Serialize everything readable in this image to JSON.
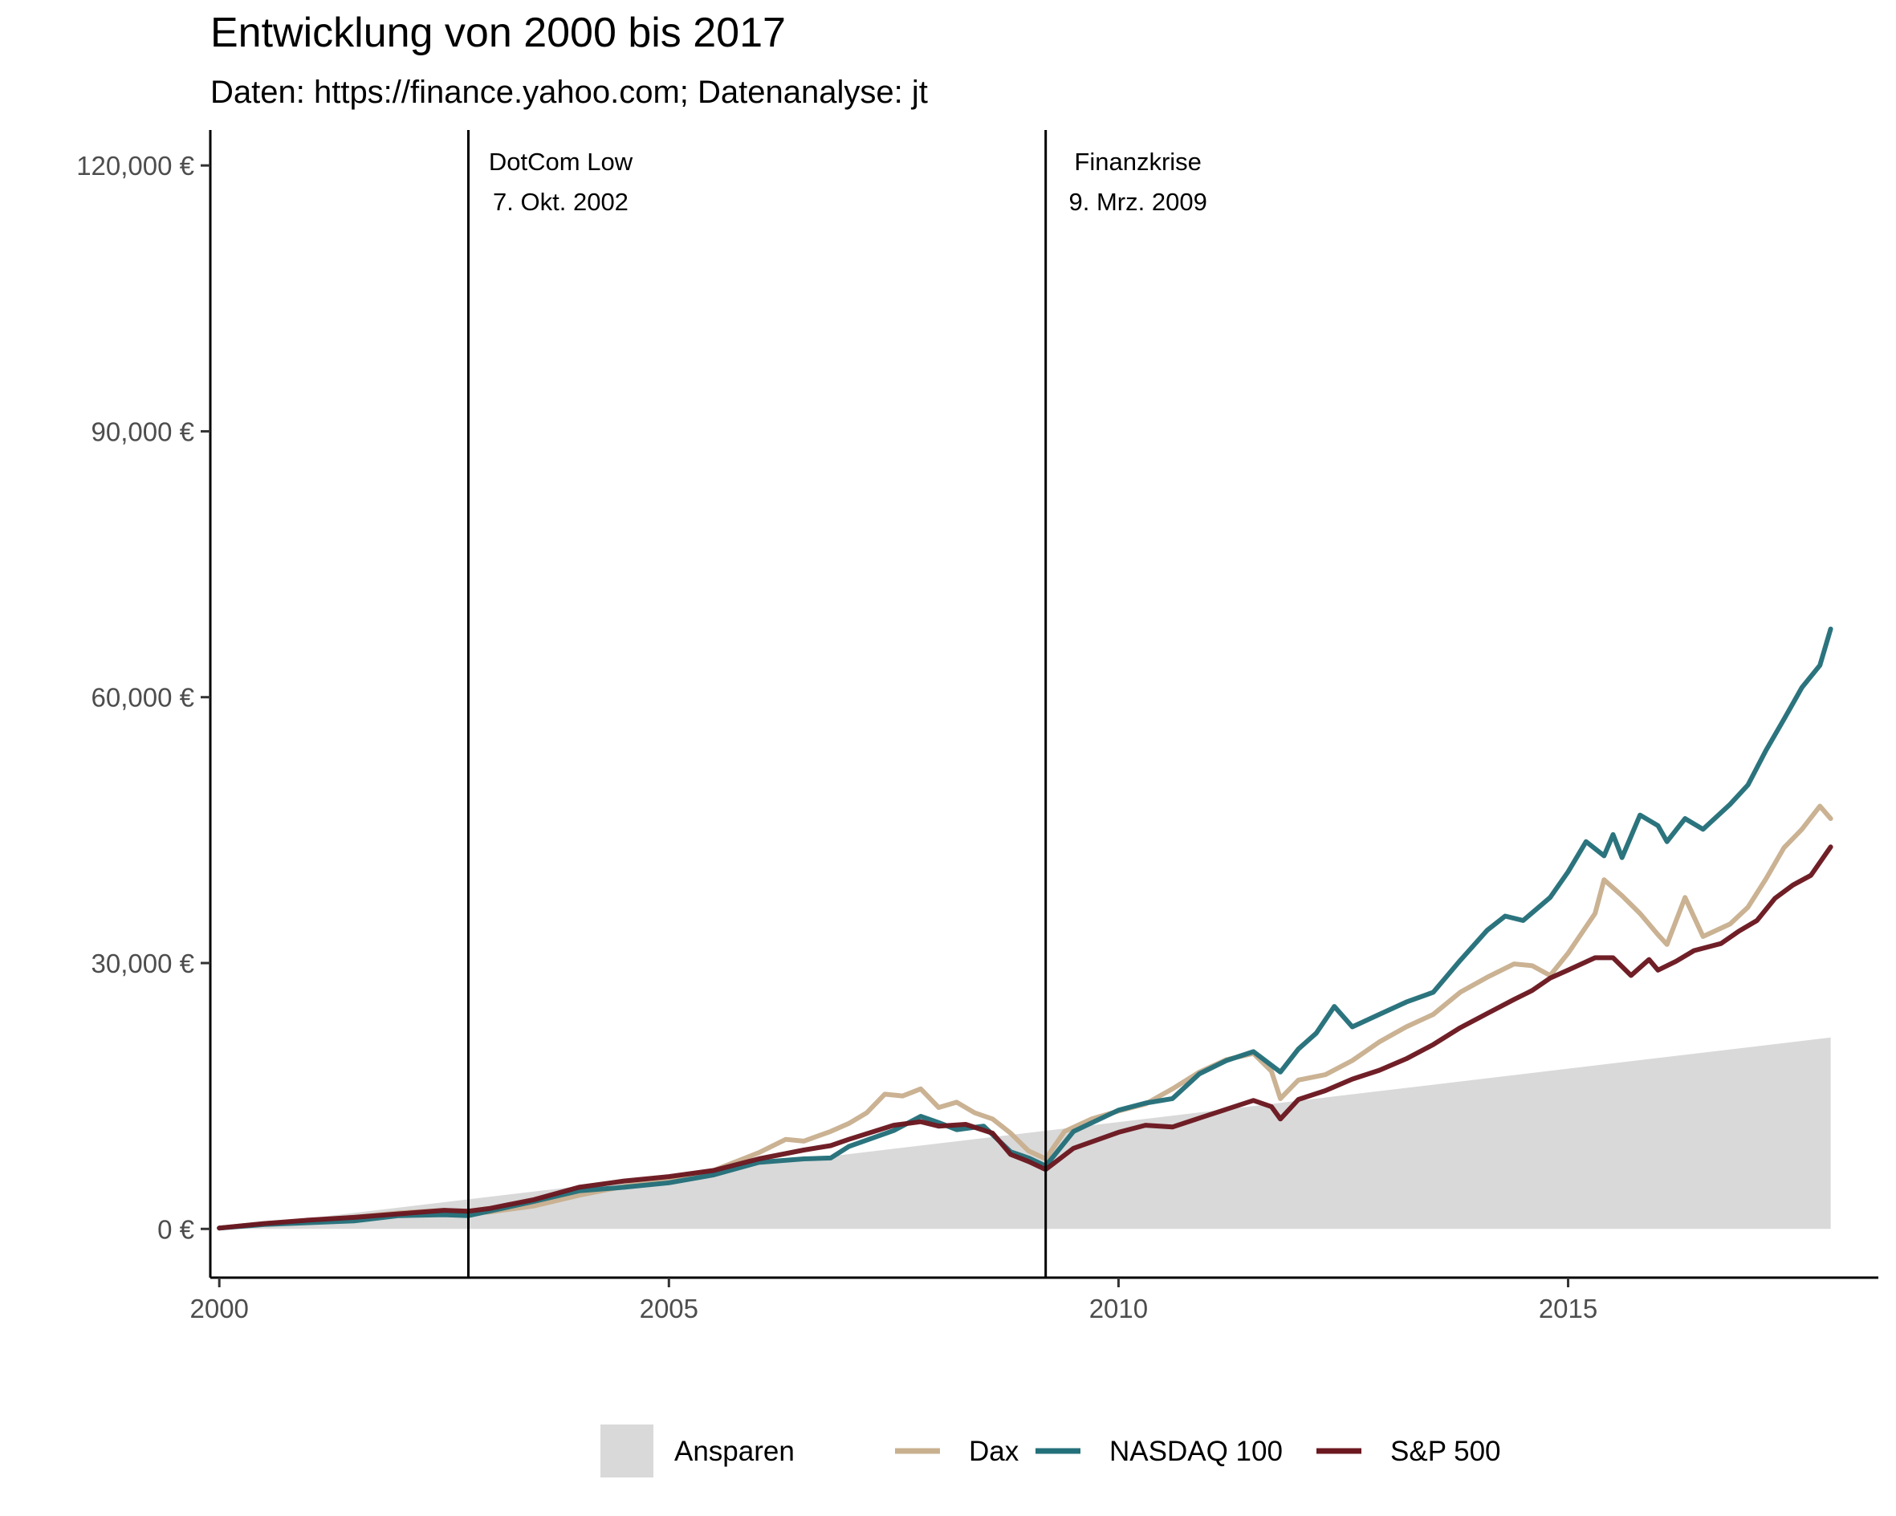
{
  "chart_data": {
    "type": "line",
    "title": "Entwicklung von 2000 bis 2017",
    "subtitle": "Daten: https://finance.yahoo.com; Datenanalyse: jt",
    "xlabel": "",
    "ylabel": "",
    "xlim": [
      1999.9,
      2018.45
    ],
    "ylim": [
      -5500,
      124000
    ],
    "x_ticks": [
      2000,
      2005,
      2010,
      2015
    ],
    "x_tick_labels": [
      "2000",
      "2005",
      "2010",
      "2015"
    ],
    "y_ticks": [
      0,
      30000,
      60000,
      90000,
      120000
    ],
    "y_tick_labels": [
      "0 €",
      "30,000 €",
      "60,000 €",
      "90,000 €",
      "120,000 €"
    ],
    "grid": false,
    "legend_position": "bottom",
    "annotations": [
      {
        "x": 2002.77,
        "line1": "DotCom Low",
        "line2": "7. Okt. 2002"
      },
      {
        "x": 2009.19,
        "line1": "Finanzkrise",
        "line2": "9. Mrz. 2009"
      }
    ],
    "area": {
      "name": "Ansparen",
      "color": "#d9d9d9",
      "x": [
        2000.0,
        2017.92
      ],
      "y": [
        0,
        21600
      ]
    },
    "series": [
      {
        "name": "Dax",
        "color": "#c8b08f",
        "points": [
          [
            2000.0,
            100
          ],
          [
            2000.5,
            600
          ],
          [
            2001.0,
            900
          ],
          [
            2001.5,
            1300
          ],
          [
            2002.0,
            1800
          ],
          [
            2002.5,
            2100
          ],
          [
            2002.77,
            1800
          ],
          [
            2003.0,
            1900
          ],
          [
            2003.5,
            2600
          ],
          [
            2004.0,
            3800
          ],
          [
            2004.5,
            4800
          ],
          [
            2005.0,
            5700
          ],
          [
            2005.5,
            6600
          ],
          [
            2006.0,
            8600
          ],
          [
            2006.3,
            10100
          ],
          [
            2006.5,
            9900
          ],
          [
            2006.8,
            11000
          ],
          [
            2007.0,
            11900
          ],
          [
            2007.2,
            13100
          ],
          [
            2007.4,
            15200
          ],
          [
            2007.6,
            15000
          ],
          [
            2007.8,
            15800
          ],
          [
            2008.0,
            13700
          ],
          [
            2008.2,
            14300
          ],
          [
            2008.4,
            13100
          ],
          [
            2008.6,
            12400
          ],
          [
            2008.8,
            10800
          ],
          [
            2009.0,
            8800
          ],
          [
            2009.19,
            7900
          ],
          [
            2009.4,
            11000
          ],
          [
            2009.7,
            12400
          ],
          [
            2010.0,
            13300
          ],
          [
            2010.3,
            14100
          ],
          [
            2010.6,
            15800
          ],
          [
            2010.9,
            17700
          ],
          [
            2011.2,
            19100
          ],
          [
            2011.5,
            19800
          ],
          [
            2011.7,
            17800
          ],
          [
            2011.8,
            14700
          ],
          [
            2012.0,
            16800
          ],
          [
            2012.3,
            17400
          ],
          [
            2012.6,
            19000
          ],
          [
            2012.9,
            21100
          ],
          [
            2013.2,
            22800
          ],
          [
            2013.5,
            24200
          ],
          [
            2013.8,
            26700
          ],
          [
            2014.1,
            28400
          ],
          [
            2014.4,
            29900
          ],
          [
            2014.6,
            29700
          ],
          [
            2014.8,
            28600
          ],
          [
            2015.0,
            31100
          ],
          [
            2015.3,
            35600
          ],
          [
            2015.4,
            39400
          ],
          [
            2015.6,
            37600
          ],
          [
            2015.8,
            35600
          ],
          [
            2016.0,
            33200
          ],
          [
            2016.1,
            32100
          ],
          [
            2016.3,
            37400
          ],
          [
            2016.5,
            33000
          ],
          [
            2016.8,
            34400
          ],
          [
            2017.0,
            36300
          ],
          [
            2017.2,
            39500
          ],
          [
            2017.4,
            43000
          ],
          [
            2017.6,
            45100
          ],
          [
            2017.8,
            47700
          ],
          [
            2017.92,
            46300
          ]
        ]
      },
      {
        "name": "NASDAQ 100",
        "color": "#24707a",
        "points": [
          [
            2000.0,
            100
          ],
          [
            2000.5,
            500
          ],
          [
            2001.0,
            700
          ],
          [
            2001.5,
            900
          ],
          [
            2002.0,
            1500
          ],
          [
            2002.5,
            1600
          ],
          [
            2002.77,
            1500
          ],
          [
            2003.0,
            2000
          ],
          [
            2003.5,
            3100
          ],
          [
            2004.0,
            4300
          ],
          [
            2004.5,
            4700
          ],
          [
            2005.0,
            5200
          ],
          [
            2005.5,
            6100
          ],
          [
            2006.0,
            7500
          ],
          [
            2006.5,
            7900
          ],
          [
            2006.8,
            8000
          ],
          [
            2007.0,
            9300
          ],
          [
            2007.5,
            11100
          ],
          [
            2007.8,
            12700
          ],
          [
            2008.0,
            12000
          ],
          [
            2008.2,
            11200
          ],
          [
            2008.5,
            11600
          ],
          [
            2008.8,
            8700
          ],
          [
            2009.0,
            8000
          ],
          [
            2009.19,
            7100
          ],
          [
            2009.5,
            11000
          ],
          [
            2010.0,
            13400
          ],
          [
            2010.3,
            14200
          ],
          [
            2010.6,
            14700
          ],
          [
            2010.9,
            17500
          ],
          [
            2011.2,
            19000
          ],
          [
            2011.5,
            20000
          ],
          [
            2011.8,
            17700
          ],
          [
            2012.0,
            20300
          ],
          [
            2012.2,
            22100
          ],
          [
            2012.4,
            25100
          ],
          [
            2012.6,
            22800
          ],
          [
            2012.9,
            24200
          ],
          [
            2013.2,
            25600
          ],
          [
            2013.5,
            26700
          ],
          [
            2013.8,
            30300
          ],
          [
            2014.1,
            33700
          ],
          [
            2014.3,
            35300
          ],
          [
            2014.5,
            34800
          ],
          [
            2014.8,
            37400
          ],
          [
            2015.0,
            40300
          ],
          [
            2015.2,
            43700
          ],
          [
            2015.4,
            42100
          ],
          [
            2015.5,
            44500
          ],
          [
            2015.6,
            41900
          ],
          [
            2015.8,
            46700
          ],
          [
            2016.0,
            45500
          ],
          [
            2016.1,
            43700
          ],
          [
            2016.3,
            46300
          ],
          [
            2016.5,
            45100
          ],
          [
            2016.8,
            47900
          ],
          [
            2017.0,
            50100
          ],
          [
            2017.2,
            54000
          ],
          [
            2017.4,
            57500
          ],
          [
            2017.6,
            61100
          ],
          [
            2017.8,
            63600
          ],
          [
            2017.92,
            67700
          ]
        ]
      },
      {
        "name": "S&P 500",
        "color": "#6b1820",
        "points": [
          [
            2000.0,
            100
          ],
          [
            2000.5,
            600
          ],
          [
            2001.0,
            1000
          ],
          [
            2001.5,
            1300
          ],
          [
            2002.0,
            1700
          ],
          [
            2002.5,
            2100
          ],
          [
            2002.77,
            2000
          ],
          [
            2003.0,
            2300
          ],
          [
            2003.5,
            3300
          ],
          [
            2004.0,
            4700
          ],
          [
            2004.5,
            5400
          ],
          [
            2005.0,
            5900
          ],
          [
            2005.5,
            6600
          ],
          [
            2006.0,
            7900
          ],
          [
            2006.5,
            8900
          ],
          [
            2006.8,
            9400
          ],
          [
            2007.0,
            10100
          ],
          [
            2007.5,
            11700
          ],
          [
            2007.8,
            12100
          ],
          [
            2008.0,
            11600
          ],
          [
            2008.3,
            11800
          ],
          [
            2008.6,
            10800
          ],
          [
            2008.8,
            8400
          ],
          [
            2009.0,
            7600
          ],
          [
            2009.19,
            6700
          ],
          [
            2009.5,
            9100
          ],
          [
            2010.0,
            10900
          ],
          [
            2010.3,
            11700
          ],
          [
            2010.6,
            11500
          ],
          [
            2010.9,
            12500
          ],
          [
            2011.2,
            13500
          ],
          [
            2011.5,
            14500
          ],
          [
            2011.7,
            13800
          ],
          [
            2011.8,
            12400
          ],
          [
            2012.0,
            14600
          ],
          [
            2012.3,
            15600
          ],
          [
            2012.6,
            16900
          ],
          [
            2012.9,
            17900
          ],
          [
            2013.2,
            19200
          ],
          [
            2013.5,
            20800
          ],
          [
            2013.8,
            22700
          ],
          [
            2014.1,
            24300
          ],
          [
            2014.4,
            25900
          ],
          [
            2014.6,
            26900
          ],
          [
            2014.8,
            28300
          ],
          [
            2015.0,
            29200
          ],
          [
            2015.3,
            30600
          ],
          [
            2015.5,
            30600
          ],
          [
            2015.7,
            28600
          ],
          [
            2015.9,
            30400
          ],
          [
            2016.0,
            29200
          ],
          [
            2016.2,
            30200
          ],
          [
            2016.4,
            31400
          ],
          [
            2016.7,
            32200
          ],
          [
            2016.9,
            33600
          ],
          [
            2017.1,
            34800
          ],
          [
            2017.3,
            37300
          ],
          [
            2017.5,
            38800
          ],
          [
            2017.7,
            39900
          ],
          [
            2017.92,
            43100
          ]
        ]
      }
    ]
  }
}
